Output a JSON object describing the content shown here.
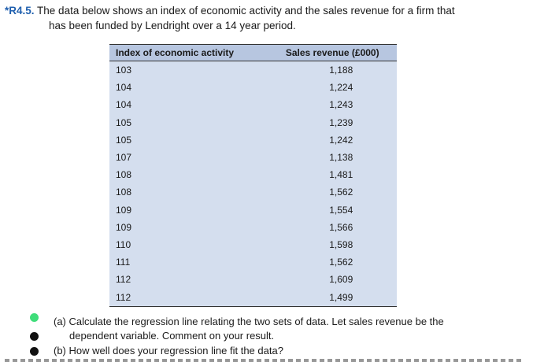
{
  "exercise": {
    "code": "*R4.5.",
    "line1": "The data below shows an index of economic activity and the sales revenue for a firm that",
    "line2": "has been funded by Lendright over a 14 year period."
  },
  "table": {
    "headers": [
      "Index of economic activity",
      "Sales revenue (£000)"
    ],
    "rows": [
      [
        "103",
        "1,188"
      ],
      [
        "104",
        "1,224"
      ],
      [
        "104",
        "1,243"
      ],
      [
        "105",
        "1,239"
      ],
      [
        "105",
        "1,242"
      ],
      [
        "107",
        "1,138"
      ],
      [
        "108",
        "1,481"
      ],
      [
        "108",
        "1,562"
      ],
      [
        "109",
        "1,554"
      ],
      [
        "109",
        "1,566"
      ],
      [
        "110",
        "1,598"
      ],
      [
        "111",
        "1,562"
      ],
      [
        "112",
        "1,609"
      ],
      [
        "112",
        "1,499"
      ]
    ]
  },
  "questions": {
    "a_line1": "(a) Calculate the regression line relating the two sets of data. Let sales revenue be the",
    "a_line2": "dependent variable. Comment on your result.",
    "b": "(b) How well does your regression line fit the data?"
  },
  "colors": {
    "table_body": "#d4deee",
    "table_header": "#b7c6e0",
    "exercise_code": "#1f5fae",
    "green_dot": "#3fdd7a"
  }
}
